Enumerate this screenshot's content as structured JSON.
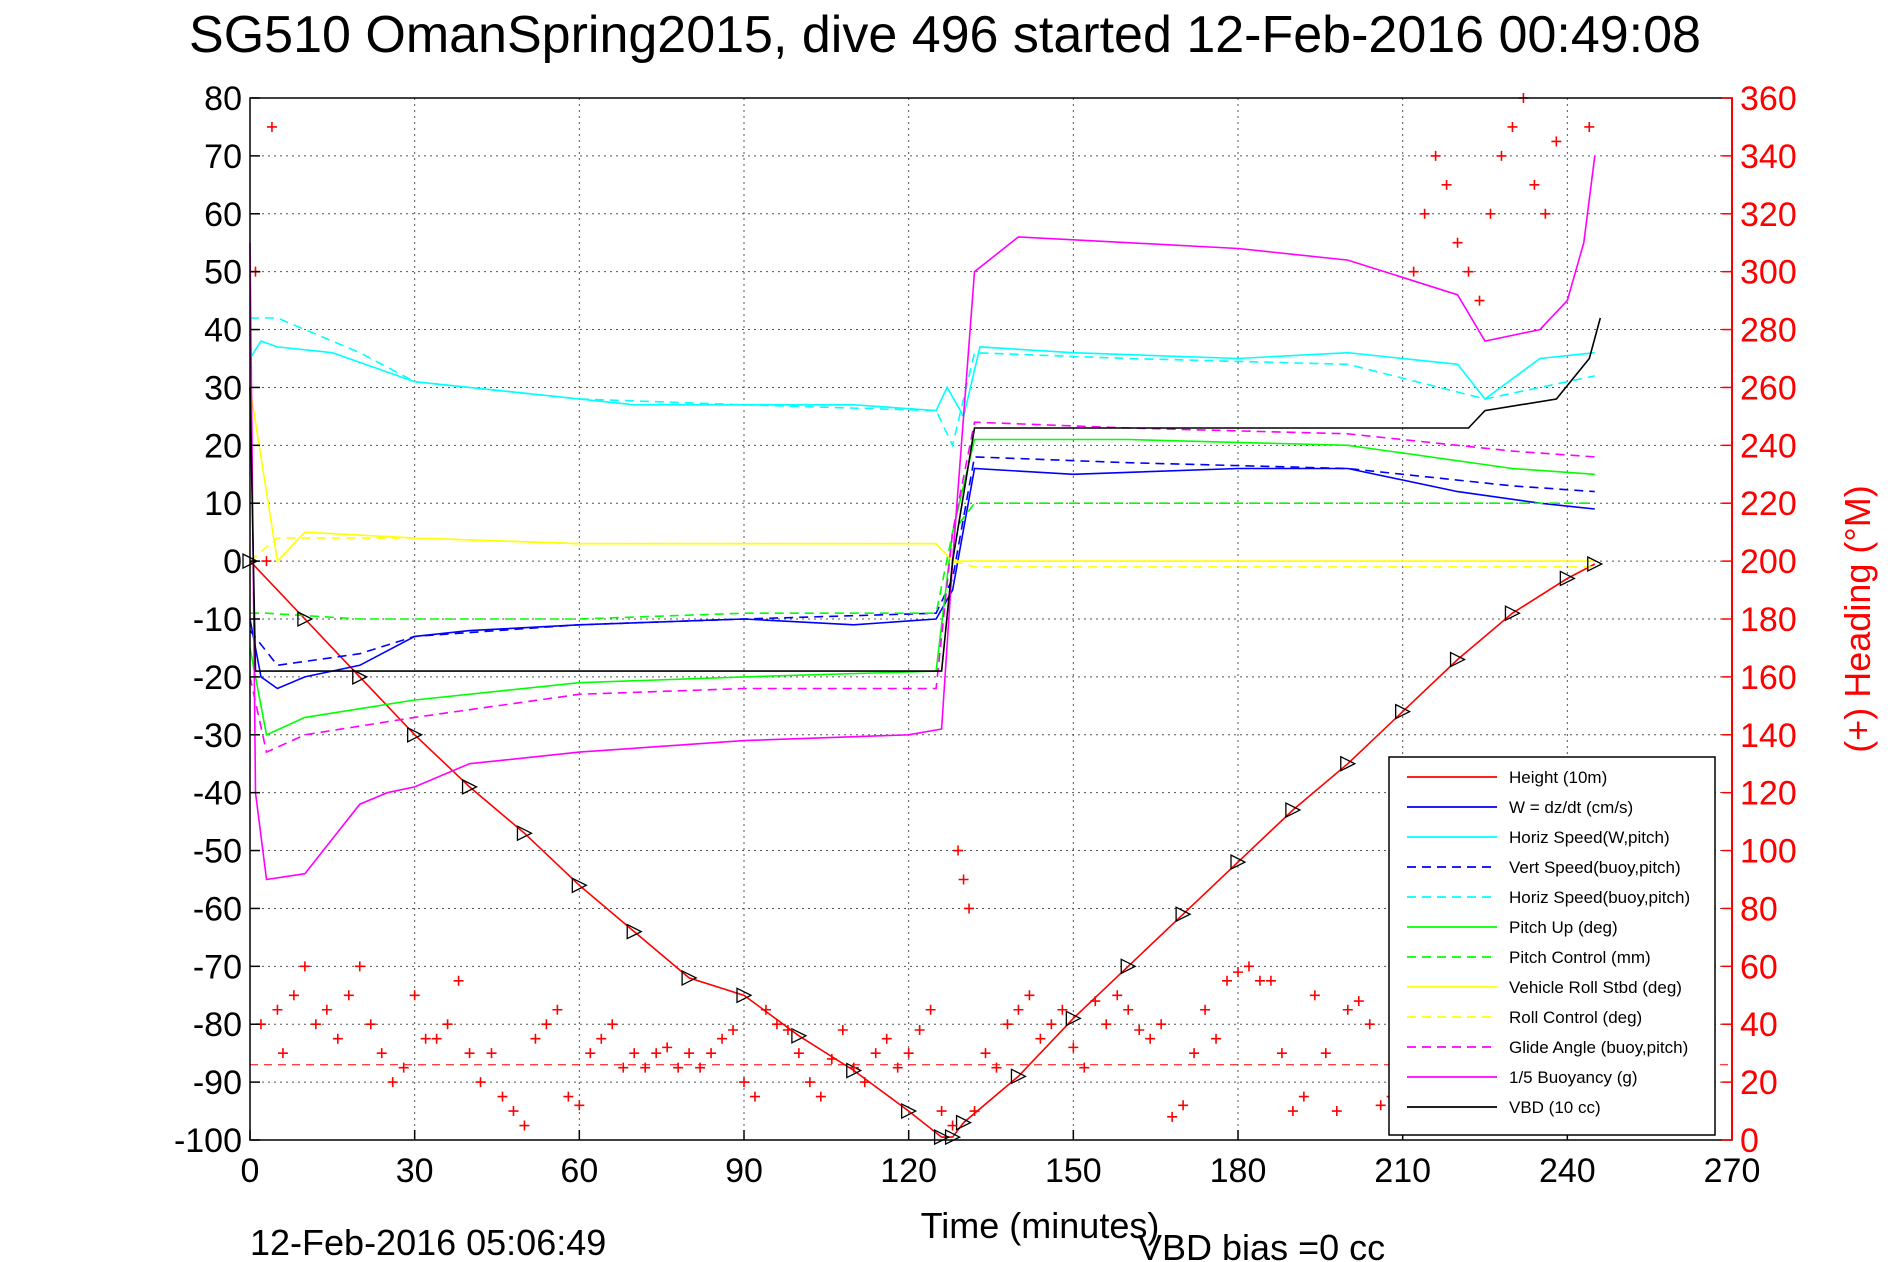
{
  "chart_data": {
    "type": "line",
    "title": "SG510 OmanSpring2015, dive 496 started 12-Feb-2016 00:49:08",
    "xlabel": "Time (minutes)",
    "ylabel_right": "(+) Heading (°M)",
    "xlim": [
      0,
      270
    ],
    "ylim": [
      -100,
      80
    ],
    "ylim_right": [
      0,
      360
    ],
    "x_ticks": [
      "0",
      "30",
      "60",
      "90",
      "120",
      "150",
      "180",
      "210",
      "240",
      "270"
    ],
    "y_ticks": [
      "80",
      "70",
      "60",
      "50",
      "40",
      "30",
      "20",
      "10",
      "0",
      "-10",
      "-20",
      "-30",
      "-40",
      "-50",
      "-60",
      "-70",
      "-80",
      "-90",
      "-100"
    ],
    "y_ticks_right": [
      "360",
      "340",
      "320",
      "300",
      "280",
      "260",
      "240",
      "220",
      "200",
      "180",
      "160",
      "140",
      "120",
      "100",
      "80",
      "60",
      "40",
      "20",
      "0"
    ],
    "grid": true,
    "legend_position": "bottom-right",
    "footer_left": "12-Feb-2016 05:06:49",
    "footer_right": "VBD bias =0 cc",
    "series": [
      {
        "name": "Height (10m)",
        "color": "#ff0000",
        "style": "solid",
        "x": [
          0,
          10,
          20,
          30,
          40,
          50,
          60,
          70,
          80,
          90,
          100,
          110,
          120,
          126,
          128,
          130,
          140,
          150,
          160,
          170,
          180,
          190,
          200,
          210,
          220,
          230,
          240,
          245
        ],
        "y": [
          0,
          -10,
          -20,
          -30,
          -39,
          -47,
          -56,
          -64,
          -72,
          -75,
          -82,
          -88,
          -95,
          -99.5,
          -99.5,
          -97,
          -89,
          -79,
          -70,
          -61,
          -52,
          -43,
          -35,
          -26,
          -17,
          -9,
          -3,
          -0.5
        ]
      },
      {
        "name": "W = dz/dt (cm/s)",
        "color": "#0000ff",
        "style": "solid",
        "x": [
          0,
          2,
          5,
          10,
          20,
          30,
          40,
          60,
          90,
          110,
          125,
          128,
          132,
          150,
          180,
          200,
          220,
          235,
          245
        ],
        "y": [
          -10,
          -20,
          -22,
          -20,
          -18,
          -13,
          -12,
          -11,
          -10,
          -11,
          -10,
          -5,
          16,
          15,
          16,
          16,
          12,
          10,
          9
        ]
      },
      {
        "name": "Horiz Speed(W,pitch)",
        "color": "#00ffff",
        "style": "solid",
        "x": [
          0,
          2,
          5,
          15,
          30,
          50,
          70,
          90,
          110,
          125,
          127,
          130,
          133,
          150,
          180,
          200,
          220,
          225,
          235,
          245
        ],
        "y": [
          35,
          38,
          37,
          36,
          31,
          29,
          27,
          27,
          27,
          26,
          30,
          25,
          37,
          36,
          35,
          36,
          34,
          28,
          35,
          36
        ]
      },
      {
        "name": "Vert Speed(buoy,pitch)",
        "color": "#0000ff",
        "style": "dashed",
        "x": [
          0,
          5,
          20,
          30,
          60,
          90,
          125,
          128,
          132,
          160,
          200,
          230,
          245
        ],
        "y": [
          -12,
          -18,
          -16,
          -13,
          -11,
          -10,
          -9,
          -3,
          18,
          17,
          16,
          13,
          12
        ]
      },
      {
        "name": "Horiz Speed(buoy,pitch)",
        "color": "#00ffff",
        "style": "dashed",
        "x": [
          0,
          5,
          20,
          30,
          60,
          90,
          125,
          128,
          132,
          160,
          200,
          225,
          245
        ],
        "y": [
          42,
          42,
          36,
          31,
          28,
          27,
          26,
          20,
          36,
          35,
          34,
          28,
          32
        ]
      },
      {
        "name": "Pitch Up (deg)",
        "color": "#00ff00",
        "style": "solid",
        "x": [
          0,
          3,
          10,
          30,
          60,
          90,
          125,
          128,
          132,
          160,
          200,
          230,
          245
        ],
        "y": [
          -15,
          -30,
          -27,
          -24,
          -21,
          -20,
          -19,
          5,
          21,
          21,
          20,
          16,
          15
        ]
      },
      {
        "name": "Pitch Control (mm)",
        "color": "#00ff00",
        "style": "dashed",
        "x": [
          0,
          3,
          20,
          60,
          90,
          125,
          128,
          132,
          160,
          200,
          240,
          245
        ],
        "y": [
          -9,
          -9,
          -10,
          -10,
          -9,
          -9,
          5,
          10,
          10,
          10,
          10,
          10
        ]
      },
      {
        "name": "Vehicle Roll Stbd (deg)",
        "color": "#ffff00",
        "style": "solid",
        "x": [
          0,
          5,
          10,
          30,
          60,
          90,
          125,
          128,
          132,
          160,
          200,
          230,
          245
        ],
        "y": [
          30,
          0,
          5,
          4,
          3,
          3,
          3,
          0,
          0,
          0,
          0,
          0,
          0
        ]
      },
      {
        "name": "Roll Control (deg)",
        "color": "#ffff00",
        "style": "dashed",
        "x": [
          0,
          5,
          30,
          60,
          90,
          125,
          128,
          132,
          160,
          200,
          230,
          245
        ],
        "y": [
          0,
          4,
          4,
          3,
          3,
          3,
          0,
          -1,
          -1,
          -1,
          -1,
          -1
        ]
      },
      {
        "name": "Glide Angle (buoy,pitch)",
        "color": "#ff00ff",
        "style": "dashed",
        "x": [
          0,
          3,
          10,
          30,
          60,
          90,
          125,
          128,
          132,
          160,
          200,
          230,
          245
        ],
        "y": [
          -20,
          -33,
          -30,
          -27,
          -23,
          -22,
          -22,
          5,
          24,
          23,
          22,
          19,
          18
        ]
      },
      {
        "name": "1/5 Buoyancy (g)",
        "color": "#ff00ff",
        "style": "solid",
        "x": [
          0,
          1,
          3,
          10,
          15,
          20,
          25,
          30,
          40,
          60,
          90,
          120,
          126,
          128,
          132,
          140,
          160,
          180,
          200,
          220,
          225,
          235,
          240,
          243,
          245
        ],
        "y": [
          55,
          -40,
          -55,
          -54,
          -48,
          -42,
          -40,
          -39,
          -35,
          -33,
          -31,
          -30,
          -29,
          0,
          50,
          56,
          55,
          54,
          52,
          46,
          38,
          40,
          45,
          55,
          70
        ]
      },
      {
        "name": "VBD (10 cc)",
        "color": "#000000",
        "style": "solid",
        "x": [
          0,
          1,
          3,
          126,
          128,
          132,
          150,
          200,
          222,
          225,
          238,
          244,
          246
        ],
        "y": [
          30,
          -19,
          -19,
          -19,
          0,
          23,
          23,
          23,
          23,
          26,
          28,
          35,
          42
        ]
      }
    ],
    "heading_series": {
      "name": "(+) Heading (°M)",
      "color": "#ff0000",
      "marker": "+",
      "axis": "right",
      "x": [
        1,
        2,
        3,
        4,
        5,
        6,
        8,
        10,
        12,
        14,
        16,
        18,
        20,
        22,
        24,
        26,
        28,
        30,
        32,
        34,
        36,
        38,
        40,
        42,
        44,
        46,
        48,
        50,
        52,
        54,
        56,
        58,
        60,
        62,
        64,
        66,
        68,
        70,
        72,
        74,
        76,
        78,
        80,
        82,
        84,
        86,
        88,
        90,
        92,
        94,
        96,
        98,
        100,
        102,
        104,
        106,
        108,
        110,
        112,
        114,
        116,
        118,
        120,
        122,
        124,
        126,
        128,
        129,
        130,
        131,
        132,
        134,
        136,
        138,
        140,
        142,
        144,
        146,
        148,
        150,
        152,
        154,
        156,
        158,
        160,
        162,
        164,
        166,
        168,
        170,
        172,
        174,
        176,
        178,
        180,
        182,
        184,
        186,
        188,
        190,
        192,
        194,
        196,
        198,
        200,
        202,
        204,
        206,
        208,
        210,
        212,
        214,
        216,
        218,
        220,
        222,
        224,
        226,
        228,
        230,
        232,
        234,
        236,
        238,
        240,
        242,
        244
      ],
      "y": [
        300,
        40,
        200,
        350,
        45,
        30,
        50,
        60,
        40,
        45,
        35,
        50,
        60,
        40,
        30,
        20,
        25,
        50,
        35,
        35,
        40,
        55,
        30,
        20,
        30,
        15,
        10,
        5,
        35,
        40,
        45,
        15,
        12,
        30,
        35,
        40,
        25,
        30,
        25,
        30,
        32,
        25,
        30,
        25,
        30,
        35,
        38,
        20,
        15,
        45,
        40,
        38,
        30,
        20,
        15,
        28,
        38,
        25,
        20,
        30,
        35,
        25,
        30,
        38,
        45,
        10,
        5,
        100,
        90,
        80,
        10,
        30,
        25,
        40,
        45,
        50,
        35,
        40,
        45,
        32,
        25,
        48,
        40,
        50,
        45,
        38,
        35,
        40,
        8,
        12,
        30,
        45,
        35,
        55,
        58,
        60,
        55,
        55,
        30,
        10,
        15,
        50,
        30,
        10,
        45,
        48,
        40,
        12,
        15,
        50,
        300,
        320,
        340,
        330,
        310,
        300,
        290,
        320,
        340,
        350,
        360,
        330,
        320,
        345,
        60,
        40,
        350
      ]
    }
  }
}
